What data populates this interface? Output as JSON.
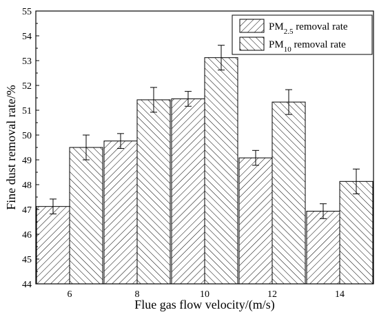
{
  "chart_data": {
    "type": "bar",
    "categories": [
      "6",
      "8",
      "10",
      "12",
      "14"
    ],
    "series": [
      {
        "name_main": "PM",
        "name_sub": "2.5",
        "name_rest": " removal rate",
        "values": [
          47.12,
          49.76,
          51.46,
          49.08,
          46.93
        ],
        "errors": [
          0.3,
          0.3,
          0.3,
          0.3,
          0.3
        ],
        "hatch": "forward"
      },
      {
        "name_main": "PM",
        "name_sub": "10",
        "name_rest": " removal rate",
        "values": [
          49.5,
          51.42,
          53.12,
          51.33,
          48.13
        ],
        "errors": [
          0.5,
          0.5,
          0.5,
          0.5,
          0.5
        ],
        "hatch": "backward"
      }
    ],
    "xlabel": "Flue gas flow velocity/(m/s)",
    "ylabel": "Fine dust removal rate/%",
    "ylim": [
      44,
      55
    ],
    "yticks": [
      44,
      45,
      46,
      47,
      48,
      49,
      50,
      51,
      52,
      53,
      54,
      55
    ],
    "grid": false,
    "legend_position": "top-right"
  }
}
